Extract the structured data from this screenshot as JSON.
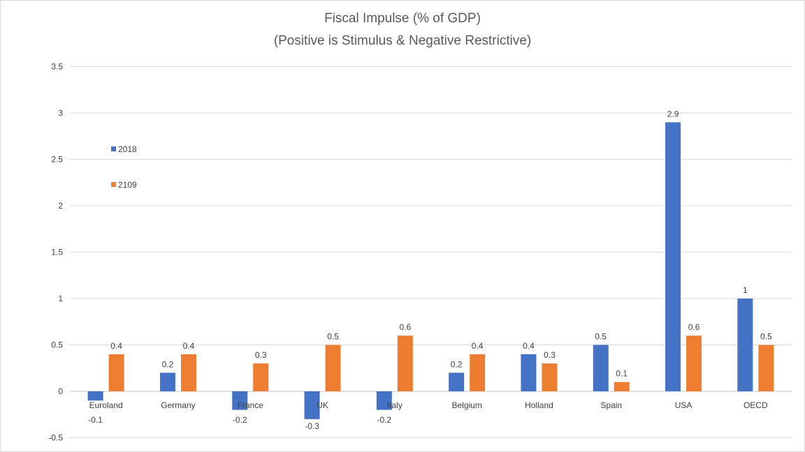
{
  "chart_data": {
    "type": "bar",
    "title": "Fiscal Impulse (% of GDP)",
    "subtitle": "(Positive is Stimulus & Negative Restrictive)",
    "categories": [
      "Euroland",
      "Germany",
      "France",
      "UK",
      "Italy",
      "Belgium",
      "Holland",
      "Spain",
      "USA",
      "OECD"
    ],
    "series": [
      {
        "name": "2018",
        "color": "#4472c4",
        "values": [
          -0.1,
          0.2,
          -0.2,
          -0.3,
          -0.2,
          0.2,
          0.4,
          0.5,
          2.9,
          1
        ]
      },
      {
        "name": "2109",
        "color": "#ed7d31",
        "values": [
          0.4,
          0.4,
          0.3,
          0.5,
          0.6,
          0.4,
          0.3,
          0.1,
          0.6,
          0.5
        ]
      }
    ],
    "ylim": [
      -0.5,
      3.5
    ],
    "yticks": [
      "-0.5",
      "0",
      "0.5",
      "1",
      "1.5",
      "2",
      "2.5",
      "3",
      "3.5"
    ],
    "grid": true,
    "legend": "left",
    "data_labels": true
  }
}
